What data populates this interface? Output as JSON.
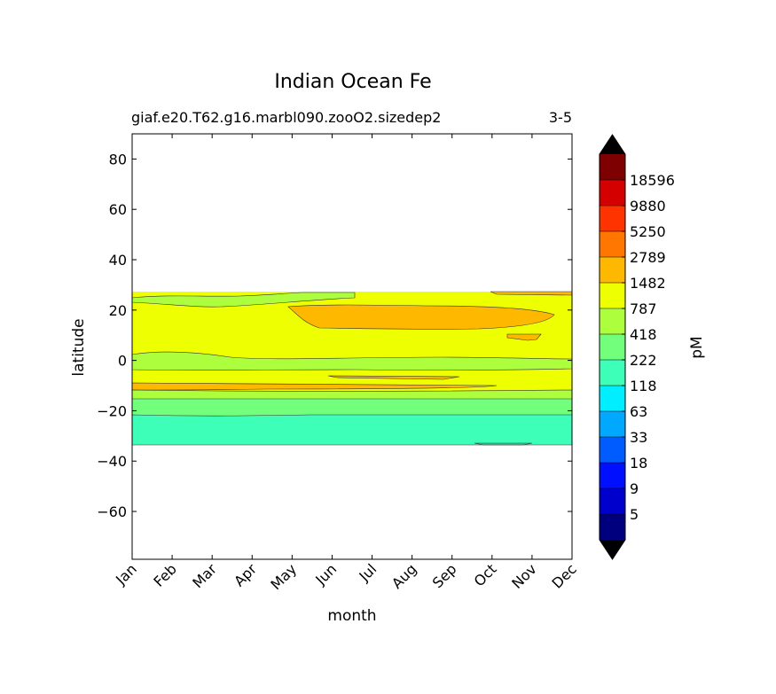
{
  "chart_data": {
    "type": "heatmap",
    "title": "Indian Ocean Fe",
    "subtitle_left": "giaf.e20.T62.g16.marbl090.zooO2.sizedep2",
    "subtitle_right": "3-5",
    "xlabel": "month",
    "ylabel": "latitude",
    "x_categories": [
      "Jan",
      "Feb",
      "Mar",
      "Apr",
      "May",
      "Jun",
      "Jul",
      "Aug",
      "Sep",
      "Oct",
      "Nov",
      "Dec"
    ],
    "ylim": [
      -79,
      90
    ],
    "yticks": [
      80,
      60,
      40,
      20,
      0,
      -20,
      -40,
      -60
    ],
    "y_extent": [
      -33.5,
      27
    ],
    "colorbar": {
      "label": "pM",
      "tick_labels": [
        "18596",
        "9880",
        "5250",
        "2789",
        "1482",
        "787",
        "418",
        "222",
        "118",
        "63",
        "33",
        "18",
        "9",
        "5"
      ],
      "colors_top_to_bottom": [
        "#7f0000",
        "#d40000",
        "#ff3300",
        "#ff7700",
        "#ffb800",
        "#edff00",
        "#adff3d",
        "#72ff7c",
        "#3dffb8",
        "#00eeff",
        "#00a8ff",
        "#005cff",
        "#0010ff",
        "#0000cc",
        "#00007f"
      ],
      "extend_top_color": "#000000",
      "extend_bottom_color": "#000000"
    },
    "field_bands": [
      {
        "level": "787-1482",
        "color": "#edff00",
        "lat_range": [
          -15,
          27
        ],
        "note": "background"
      },
      {
        "level": "418-787",
        "color": "#adff3d",
        "lat_range": [
          21,
          26
        ],
        "months": [
          "Jan",
          "Jun"
        ]
      },
      {
        "level": "418-787",
        "color": "#adff3d",
        "lat_range": [
          -4,
          3
        ],
        "months": [
          "Jan",
          "Dec"
        ]
      },
      {
        "level": "418-787",
        "color": "#adff3d",
        "lat_range": [
          -15,
          -12.5
        ],
        "months": [
          "Jan",
          "Dec"
        ]
      },
      {
        "level": "1482-2789",
        "color": "#ffb800",
        "lat_range": [
          13,
          22
        ],
        "months": [
          "May",
          "Nov"
        ]
      },
      {
        "level": "1482-2789",
        "color": "#ffb800",
        "lat_range": [
          -12.5,
          -9
        ],
        "months": [
          "Jan",
          "Sep"
        ]
      },
      {
        "level": "222-418",
        "color": "#72ff7c",
        "lat_range": [
          -22,
          -15
        ],
        "months": [
          "Jan",
          "Dec"
        ]
      },
      {
        "level": "118-222",
        "color": "#3dffb8",
        "lat_range": [
          -33.5,
          -21
        ],
        "months": [
          "Jan",
          "Dec"
        ]
      }
    ]
  }
}
